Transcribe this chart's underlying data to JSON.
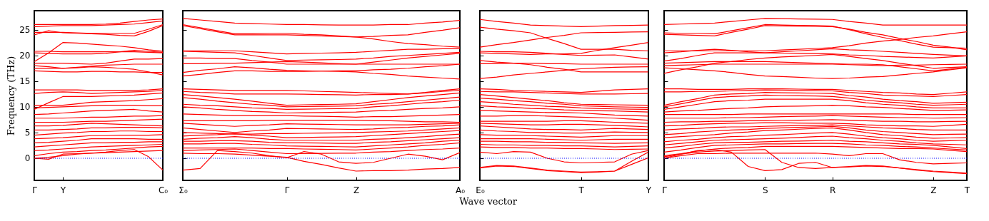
{
  "chart_data": [
    {
      "type": "line",
      "ylabel": "Frequency (THz)",
      "color": "#ff0000",
      "ylim": [
        -4.3,
        28.7
      ],
      "yticks": [
        0,
        5,
        10,
        15,
        20,
        25
      ],
      "categories": [
        "Γ",
        null,
        "Y",
        null,
        null,
        null,
        null,
        null,
        null,
        "C₀"
      ],
      "ref_lines": [
        {
          "axis": "y",
          "value": 0,
          "color": "#0000ff",
          "line_style": "dotted"
        }
      ],
      "series": [
        {
          "values": [
            26,
            26,
            26,
            26,
            26,
            26.1,
            26.3,
            26.6,
            26.9,
            27.1
          ]
        },
        {
          "values": [
            25.6,
            25.7,
            25.8,
            25.8,
            25.8,
            25.9,
            26.0,
            26.1,
            26.4,
            26.7
          ]
        },
        {
          "values": [
            24.5,
            24.5,
            24.5,
            24.4,
            24.3,
            24.3,
            24.3,
            24.3,
            25.1,
            26.0
          ]
        },
        {
          "values": [
            24.0,
            24.8,
            24.4,
            24.3,
            24.2,
            24.1,
            23.9,
            23.8,
            24.7,
            25.8
          ]
        },
        {
          "values": [
            18.8,
            20.5,
            22.5,
            22.4,
            22.2,
            22.0,
            21.8,
            21.5,
            21.1,
            20.8
          ]
        },
        {
          "values": [
            20.8,
            20.8,
            20.7,
            20.7,
            20.7,
            20.7,
            20.7,
            20.7,
            20.6,
            20.5
          ]
        },
        {
          "values": [
            20.5,
            20.4,
            20.3,
            20.3,
            20.3,
            20.4,
            20.7,
            21.0,
            20.8,
            20.6
          ]
        },
        {
          "values": [
            18.5,
            18.5,
            18.5,
            18.4,
            18.3,
            18.5,
            18.9,
            19.3,
            19.3,
            19.4
          ]
        },
        {
          "values": [
            18.0,
            17.8,
            17.5,
            17.7,
            17.9,
            18.1,
            18.2,
            18.3,
            18.3,
            18.3
          ]
        },
        {
          "values": [
            17.5,
            17.5,
            17.5,
            17.6,
            17.8,
            17.7,
            17.5,
            17.3,
            16.8,
            16.2
          ]
        },
        {
          "values": [
            17.0,
            16.9,
            16.8,
            16.8,
            16.9,
            16.9,
            16.8,
            16.8,
            16.7,
            16.7
          ]
        },
        {
          "values": [
            13.3,
            13.3,
            13.3,
            13.3,
            13.2,
            13.2,
            13.2,
            13.2,
            13.3,
            13.5
          ]
        },
        {
          "values": [
            12.6,
            12.8,
            12.9,
            12.8,
            12.6,
            12.7,
            12.8,
            12.9,
            13.0,
            13.2
          ]
        },
        {
          "values": [
            9.5,
            10.8,
            12.0,
            12.0,
            12.0,
            12.1,
            12.2,
            12.3,
            12.5,
            12.7
          ]
        },
        {
          "values": [
            10.3,
            10.3,
            10.3,
            10.6,
            10.9,
            11.0,
            11.1,
            11.2,
            11.4,
            11.6
          ]
        },
        {
          "values": [
            9.8,
            9.9,
            10.0,
            10.1,
            10.2,
            10.3,
            10.3,
            10.3,
            10.2,
            10.2
          ]
        },
        {
          "values": [
            8.5,
            8.6,
            8.8,
            9.0,
            9.2,
            9.3,
            9.4,
            9.5,
            9.2,
            9.0
          ]
        },
        {
          "values": [
            7.8,
            7.8,
            7.8,
            7.9,
            8.0,
            8.0,
            8.1,
            8.2,
            8.2,
            8.3
          ]
        },
        {
          "values": [
            7.0,
            7.0,
            7.0,
            7.1,
            7.2,
            7.2,
            7.3,
            7.4,
            7.5,
            7.6
          ]
        },
        {
          "values": [
            6.3,
            6.3,
            6.4,
            6.6,
            6.8,
            6.7,
            6.6,
            6.5,
            6.4,
            6.3
          ]
        },
        {
          "values": [
            5.5,
            5.5,
            5.6,
            5.7,
            5.9,
            5.9,
            6.0,
            6.0,
            6.0,
            5.9
          ]
        },
        {
          "values": [
            4.5,
            4.7,
            4.9,
            5.0,
            5.2,
            5.2,
            5.3,
            5.3,
            5.2,
            5.2
          ]
        },
        {
          "values": [
            3.8,
            3.9,
            4.0,
            4.2,
            4.4,
            4.4,
            4.5,
            4.5,
            4.5,
            4.6
          ]
        },
        {
          "values": [
            3.0,
            3.1,
            3.3,
            3.5,
            3.8,
            3.8,
            3.8,
            3.8,
            3.7,
            3.7
          ]
        },
        {
          "values": [
            2.2,
            2.4,
            2.6,
            2.8,
            3.0,
            3.0,
            3.1,
            3.1,
            3.2,
            3.2
          ]
        },
        {
          "values": [
            1.5,
            1.6,
            1.8,
            2.0,
            2.2,
            2.3,
            2.4,
            2.5,
            2.6,
            2.7
          ]
        },
        {
          "values": [
            0.5,
            0.9,
            1.2,
            1.3,
            1.5,
            1.6,
            1.8,
            2.0,
            2.2,
            2.3
          ]
        },
        {
          "values": [
            0,
            -0.2,
            0.8,
            0.9,
            1.0,
            1.1,
            1.2,
            1.3,
            1.4,
            1.5
          ]
        },
        {
          "values": [
            0,
            0.2,
            0.5,
            0.8,
            1.0,
            1.2,
            1.5,
            1.7,
            0.3,
            -2.3
          ]
        }
      ]
    },
    {
      "type": "line",
      "color": "#ff0000",
      "ylim": [
        -4.3,
        28.7
      ],
      "yticks": [
        0,
        5,
        10,
        15,
        20,
        25
      ],
      "tick_labels": "x",
      "categories": [
        "Σ₀",
        null,
        null,
        null,
        null,
        null,
        "Γ",
        null,
        null,
        null,
        "Z",
        null,
        null,
        null,
        null,
        null,
        "A₀"
      ],
      "ref_lines": [
        {
          "axis": "y",
          "value": 0,
          "color": "#0000ff",
          "line_style": "dotted"
        }
      ],
      "xlabel": "Wave vector",
      "series": [
        {
          "values": [
            27.2,
            26.9,
            26.6,
            26.3,
            26.2,
            26.1,
            26.0,
            26.0,
            25.95,
            25.9,
            25.9,
            25.9,
            26.0,
            26.0,
            26.3,
            26.5,
            26.8
          ]
        },
        {
          "values": [
            26.0,
            25.4,
            24.8,
            24.2,
            24.2,
            24.3,
            24.3,
            24.1,
            24.0,
            23.8,
            23.6,
            23.7,
            23.9,
            24.0,
            24.5,
            24.9,
            25.4
          ]
        },
        {
          "values": [
            25.8,
            25.2,
            24.6,
            24.0,
            24.0,
            24.0,
            24.0,
            23.9,
            23.8,
            23.7,
            23.6,
            23.2,
            22.7,
            22.3,
            22.1,
            21.8,
            21.6
          ]
        },
        {
          "values": [
            20.9,
            20.9,
            20.9,
            20.9,
            20.7,
            20.5,
            20.3,
            20.4,
            20.45,
            20.5,
            20.6,
            20.8,
            21.0,
            21.2,
            21.2,
            21.3,
            21.3
          ]
        },
        {
          "values": [
            20.8,
            20.7,
            20.6,
            20.5,
            20.0,
            19.5,
            19.0,
            19.1,
            19.15,
            19.2,
            19.3,
            19.5,
            19.8,
            20.0,
            20.2,
            20.4,
            20.6
          ]
        },
        {
          "values": [
            19.5,
            19.5,
            19.4,
            19.4,
            19.0,
            18.7,
            18.3,
            18.3,
            18.3,
            18.3,
            18.3,
            18.7,
            19.1,
            19.5,
            19.8,
            20.1,
            20.4
          ]
        },
        {
          "values": [
            18.4,
            18.4,
            18.5,
            18.5,
            18.6,
            18.7,
            18.8,
            18.7,
            18.55,
            18.4,
            18.3,
            18.3,
            18.3,
            18.3,
            18.3,
            18.3,
            18.3
          ]
        },
        {
          "values": [
            16.7,
            17.1,
            17.4,
            17.8,
            17.6,
            17.3,
            17.1,
            17.0,
            16.95,
            16.9,
            16.8,
            16.5,
            16.3,
            16.0,
            15.8,
            15.6,
            15.4
          ]
        },
        {
          "values": [
            16.0,
            16.3,
            16.7,
            17.0,
            17.0,
            16.9,
            16.9,
            16.9,
            16.95,
            17.0,
            17.0,
            17.2,
            17.3,
            17.5,
            17.8,
            18.0,
            18.3
          ]
        },
        {
          "values": [
            13.5,
            13.4,
            13.3,
            13.2,
            13.2,
            13.2,
            13.2,
            13.1,
            13.0,
            12.9,
            12.8,
            12.7,
            12.6,
            12.5,
            12.8,
            13.2,
            13.5
          ]
        },
        {
          "values": [
            13.0,
            12.8,
            12.7,
            12.5,
            12.5,
            12.5,
            12.5,
            12.45,
            12.4,
            12.35,
            12.3,
            12.4,
            12.4,
            12.5,
            12.7,
            13.0,
            13.2
          ]
        },
        {
          "values": [
            12.4,
            12.1,
            11.8,
            11.5,
            11.1,
            10.7,
            10.3,
            10.4,
            10.45,
            10.5,
            10.6,
            11.0,
            11.4,
            11.8,
            12.1,
            12.4,
            12.7
          ]
        },
        {
          "values": [
            11.8,
            11.5,
            11.1,
            10.8,
            10.5,
            10.3,
            10.0,
            10.05,
            10.1,
            10.15,
            10.2,
            10.5,
            10.7,
            11.0,
            11.3,
            11.6,
            11.9
          ]
        },
        {
          "values": [
            10.5,
            10.3,
            10.2,
            10.0,
            9.8,
            9.7,
            9.5,
            9.55,
            9.6,
            9.65,
            9.7,
            10.0,
            10.2,
            10.5,
            10.8,
            11.0,
            11.3
          ]
        },
        {
          "values": [
            10.0,
            9.8,
            9.5,
            9.3,
            9.1,
            9.0,
            8.8,
            8.85,
            8.9,
            8.95,
            9.0,
            9.2,
            9.3,
            9.5,
            9.7,
            9.8,
            10.0
          ]
        },
        {
          "values": [
            8.6,
            8.5,
            8.4,
            8.3,
            8.3,
            8.3,
            8.3,
            8.2,
            8.15,
            8.1,
            8.0,
            8.1,
            8.1,
            8.2,
            8.3,
            8.4,
            8.5
          ]
        },
        {
          "values": [
            7.3,
            7.3,
            7.3,
            7.3,
            7.3,
            7.4,
            7.4,
            7.4,
            7.4,
            7.4,
            7.4,
            7.3,
            7.3,
            7.2,
            7.1,
            7.1,
            7.0
          ]
        },
        {
          "values": [
            6.8,
            6.6,
            6.4,
            6.2,
            6.4,
            6.5,
            6.7,
            6.65,
            6.6,
            6.55,
            6.5,
            6.5,
            6.5,
            6.5,
            6.6,
            6.7,
            6.8
          ]
        },
        {
          "values": [
            5.9,
            5.6,
            5.3,
            5.0,
            5.3,
            5.5,
            5.8,
            5.75,
            5.7,
            5.65,
            5.6,
            5.7,
            5.9,
            6.0,
            6.2,
            6.3,
            6.5
          ]
        },
        {
          "values": [
            5.0,
            4.9,
            4.8,
            4.7,
            4.7,
            4.8,
            4.8,
            4.85,
            4.9,
            4.95,
            5.0,
            5.1,
            5.2,
            5.3,
            5.5,
            5.7,
            5.9
          ]
        },
        {
          "values": [
            4.3,
            4.5,
            4.6,
            4.8,
            4.5,
            4.3,
            4.0,
            4.05,
            4.1,
            4.15,
            4.2,
            4.4,
            4.6,
            4.8,
            5.0,
            5.2,
            5.4
          ]
        },
        {
          "values": [
            3.7,
            3.9,
            4.0,
            4.2,
            4.0,
            3.7,
            3.5,
            3.5,
            3.5,
            3.5,
            3.5,
            3.7,
            3.8,
            4.0,
            4.2,
            4.5,
            4.7
          ]
        },
        {
          "values": [
            3.3,
            3.3,
            3.4,
            3.4,
            3.3,
            3.1,
            3.0,
            3.0,
            2.95,
            2.9,
            2.9,
            3.1,
            3.2,
            3.4,
            3.6,
            3.8,
            4.0
          ]
        },
        {
          "values": [
            2.8,
            2.8,
            2.9,
            2.9,
            2.7,
            2.6,
            2.4,
            2.35,
            2.3,
            2.25,
            2.2,
            2.4,
            2.6,
            2.8,
            3.0,
            3.3,
            3.5
          ]
        },
        {
          "values": [
            2.0,
            2.0,
            2.0,
            2.0,
            2.0,
            1.9,
            1.9,
            1.8,
            1.75,
            1.7,
            1.6,
            1.8,
            2.0,
            2.2,
            2.5,
            2.7,
            3.0
          ]
        },
        {
          "values": [
            1.5,
            1.6,
            1.7,
            1.8,
            1.5,
            1.2,
            0.9,
            0.9,
            0.95,
            1.0,
            1.0,
            1.2,
            1.3,
            1.5,
            1.7,
            1.8,
            2.0
          ]
        },
        {
          "values": [
            1.0,
            0.9,
            0.9,
            0.8,
            0.6,
            0.4,
            0.2,
            -0.6,
            -1.2,
            -1.9,
            -2.5,
            -2.4,
            -2.4,
            -2.3,
            -2.1,
            -2.0,
            -1.8
          ]
        },
        {
          "values": [
            -2.3,
            -2.0,
            1.5,
            1.3,
            1.0,
            0.5,
            0.1,
            1.3,
            0.8,
            -0.7,
            -1.0,
            -0.8,
            0.0,
            0.8,
            0.4,
            -0.3,
            1.1
          ]
        }
      ]
    },
    {
      "type": "line",
      "color": "#ff0000",
      "ylim": [
        -4.3,
        28.7
      ],
      "yticks": [
        0,
        5,
        10,
        15,
        20,
        25
      ],
      "tick_labels": "x",
      "categories": [
        "E₀",
        null,
        null,
        null,
        null,
        null,
        "T",
        null,
        null,
        null,
        "Y"
      ],
      "ref_lines": [
        {
          "axis": "y",
          "value": 0,
          "color": "#0000ff",
          "line_style": "dotted"
        }
      ],
      "series": [
        {
          "values": [
            27.0,
            26.6,
            26.3,
            25.9,
            25.8,
            25.7,
            25.6,
            25.7,
            25.8,
            25.85,
            25.9
          ]
        },
        {
          "values": [
            25.5,
            25.1,
            24.8,
            24.4,
            23.3,
            22.3,
            21.2,
            21.2,
            21.2,
            21.0,
            20.9
          ]
        },
        {
          "values": [
            21.6,
            22.1,
            22.5,
            23.0,
            23.5,
            23.9,
            24.4,
            24.45,
            24.5,
            24.55,
            24.6
          ]
        },
        {
          "values": [
            20.8,
            20.7,
            20.7,
            20.6,
            20.4,
            20.2,
            20.0,
            20.05,
            20.1,
            19.7,
            19.3
          ]
        },
        {
          "values": [
            20.5,
            20.4,
            20.3,
            20.2,
            20.3,
            20.3,
            20.4,
            21.0,
            21.5,
            22.0,
            22.5
          ]
        },
        {
          "values": [
            18.4,
            18.4,
            18.5,
            18.5,
            18.4,
            18.4,
            18.3,
            18.3,
            18.3,
            18.3,
            18.3
          ]
        },
        {
          "values": [
            19.0,
            18.7,
            18.5,
            18.2,
            17.7,
            17.3,
            16.8,
            16.8,
            16.8,
            16.8,
            16.8
          ]
        },
        {
          "values": [
            15.5,
            15.8,
            16.2,
            16.5,
            16.8,
            17.1,
            17.4,
            17.55,
            17.7,
            17.75,
            17.8
          ]
        },
        {
          "values": [
            13.5,
            13.4,
            13.2,
            13.1,
            13.0,
            12.9,
            12.8,
            13.05,
            13.3,
            13.4,
            13.5
          ]
        },
        {
          "values": [
            13.0,
            12.9,
            12.9,
            12.8,
            12.7,
            12.6,
            12.5,
            12.5,
            12.5,
            12.55,
            12.6
          ]
        },
        {
          "values": [
            12.4,
            12.1,
            11.8,
            11.5,
            11.2,
            10.8,
            10.5,
            10.45,
            10.4,
            10.35,
            10.3
          ]
        },
        {
          "values": [
            11.7,
            11.5,
            11.2,
            11.0,
            10.7,
            10.5,
            10.2,
            10.1,
            10.0,
            9.95,
            9.9
          ]
        },
        {
          "values": [
            11.0,
            10.8,
            10.5,
            10.3,
            10.1,
            10.0,
            9.8,
            9.7,
            9.6,
            9.55,
            9.5
          ]
        },
        {
          "values": [
            10.2,
            10.0,
            9.9,
            9.7,
            9.6,
            9.4,
            9.3,
            9.25,
            9.2,
            9.1,
            9.0
          ]
        },
        {
          "values": [
            9.3,
            9.2,
            9.1,
            9.0,
            8.9,
            8.9,
            8.8,
            8.6,
            8.4,
            8.3,
            8.2
          ]
        },
        {
          "values": [
            8.2,
            8.2,
            8.3,
            8.3,
            8.2,
            8.1,
            8.0,
            7.9,
            7.8,
            7.6,
            7.4
          ]
        },
        {
          "values": [
            7.2,
            7.2,
            7.2,
            7.2,
            7.2,
            7.3,
            7.3,
            7.15,
            7.0,
            6.9,
            6.8
          ]
        },
        {
          "values": [
            6.8,
            6.7,
            6.6,
            6.5,
            6.5,
            6.6,
            6.6,
            6.5,
            6.4,
            6.25,
            6.1
          ]
        },
        {
          "values": [
            6.3,
            6.1,
            5.9,
            5.7,
            5.6,
            5.6,
            5.5,
            5.65,
            5.8,
            5.7,
            5.6
          ]
        },
        {
          "values": [
            5.5,
            5.3,
            5.2,
            5.0,
            5.0,
            4.9,
            4.9,
            5.0,
            5.1,
            5.05,
            5.0
          ]
        },
        {
          "values": [
            4.6,
            4.5,
            4.5,
            4.4,
            4.3,
            4.2,
            4.1,
            4.25,
            4.4,
            4.4,
            4.4
          ]
        },
        {
          "values": [
            3.8,
            3.8,
            3.8,
            3.8,
            3.7,
            3.6,
            3.5,
            3.6,
            3.7,
            3.7,
            3.7
          ]
        },
        {
          "values": [
            3.3,
            3.3,
            3.2,
            3.2,
            3.1,
            3.1,
            3.0,
            2.95,
            2.9,
            2.95,
            3.0
          ]
        },
        {
          "values": [
            2.7,
            2.6,
            2.6,
            2.5,
            2.5,
            2.4,
            2.4,
            2.3,
            2.2,
            2.3,
            2.4
          ]
        },
        {
          "values": [
            2.2,
            2.1,
            2.1,
            2.0,
            2.0,
            1.9,
            1.9,
            1.8,
            1.7,
            1.75,
            1.8
          ]
        },
        {
          "values": [
            1.2,
            0.9,
            1.3,
            1.2,
            0.0,
            -0.7,
            -0.9,
            -0.8,
            -0.7,
            0.8,
            1.5
          ]
        },
        {
          "values": [
            -1.8,
            -1.4,
            -1.5,
            -1.9,
            -2.3,
            -2.5,
            -2.7,
            -2.6,
            -2.5,
            -1.2,
            0.1
          ]
        },
        {
          "values": [
            -1.9,
            -1.5,
            -1.6,
            -2.0,
            -2.4,
            -2.6,
            -2.8,
            -2.7,
            -2.5,
            -0.6,
            1.2
          ]
        }
      ]
    },
    {
      "type": "line",
      "color": "#ff0000",
      "ylim": [
        -4.3,
        28.7
      ],
      "yticks": [
        0,
        5,
        10,
        15,
        20,
        25
      ],
      "tick_labels": "x",
      "categories": [
        "Γ",
        null,
        null,
        null,
        null,
        null,
        "S",
        null,
        null,
        null,
        "R",
        null,
        null,
        null,
        null,
        null,
        "Z",
        null,
        "T"
      ],
      "ref_lines": [
        {
          "axis": "y",
          "value": 0,
          "color": "#0000ff",
          "line_style": "dotted"
        }
      ],
      "series": [
        {
          "values": [
            26.0,
            26.1,
            26.2,
            26.3,
            26.6,
            26.9,
            27.2,
            27.15,
            27.1,
            27.05,
            27.0,
            26.6,
            26.3,
            25.9,
            25.9,
            25.9,
            25.9,
            25.9,
            25.9
          ]
        },
        {
          "values": [
            24.4,
            24.3,
            24.3,
            24.2,
            24.8,
            25.4,
            26.0,
            25.9,
            25.85,
            25.8,
            25.7,
            25.0,
            24.2,
            23.5,
            22.9,
            22.2,
            21.6,
            21.5,
            21.4
          ]
        },
        {
          "values": [
            24.1,
            24.0,
            23.9,
            23.8,
            24.5,
            25.1,
            25.8,
            25.75,
            25.7,
            25.65,
            25.6,
            25.1,
            24.5,
            24.0,
            23.3,
            22.7,
            22.0,
            21.6,
            21.1
          ]
        },
        {
          "values": [
            20.9,
            20.9,
            20.9,
            20.9,
            20.9,
            20.9,
            20.9,
            21.05,
            21.2,
            21.35,
            21.5,
            21.9,
            22.4,
            22.8,
            23.1,
            23.5,
            23.8,
            24.2,
            24.6
          ]
        },
        {
          "values": [
            20.5,
            20.7,
            21.0,
            21.2,
            21.0,
            20.7,
            20.5,
            20.7,
            20.9,
            21.1,
            21.3,
            21.1,
            21.0,
            20.8,
            20.6,
            20.4,
            20.2,
            20.05,
            19.9
          ]
        },
        {
          "values": [
            18.9,
            19.4,
            20.0,
            20.5,
            20.5,
            20.5,
            20.5,
            20.45,
            20.4,
            20.35,
            20.3,
            20.1,
            20.0,
            19.8,
            19.7,
            19.6,
            19.5,
            19.7,
            19.9
          ]
        },
        {
          "values": [
            18.5,
            18.6,
            18.7,
            18.8,
            18.8,
            18.8,
            18.8,
            18.7,
            18.6,
            18.5,
            18.4,
            18.3,
            18.3,
            18.2,
            17.8,
            17.4,
            17.0,
            17.35,
            17.7
          ]
        },
        {
          "values": [
            18.0,
            18.1,
            18.2,
            18.3,
            18.3,
            18.3,
            18.3,
            18.3,
            18.3,
            18.3,
            18.3,
            18.2,
            18.1,
            18.0,
            18.1,
            18.1,
            18.2,
            18.25,
            18.3
          ]
        },
        {
          "values": [
            17.6,
            17.4,
            17.2,
            17.0,
            16.7,
            16.3,
            16.0,
            15.9,
            15.75,
            15.6,
            15.5,
            15.6,
            15.8,
            15.9,
            16.2,
            16.5,
            16.8,
            17.2,
            17.6
          ]
        },
        {
          "values": [
            16.5,
            17.2,
            17.8,
            18.5,
            18.8,
            19.2,
            19.5,
            19.7,
            19.85,
            20.0,
            20.2,
            19.8,
            19.4,
            19.0,
            18.5,
            18.0,
            17.5,
            17.65,
            17.8
          ]
        },
        {
          "values": [
            13.5,
            13.5,
            13.4,
            13.4,
            13.4,
            13.5,
            13.5,
            13.5,
            13.45,
            13.4,
            13.4,
            13.2,
            13.0,
            12.8,
            12.7,
            12.5,
            12.4,
            12.65,
            12.9
          ]
        },
        {
          "values": [
            12.9,
            12.9,
            13.0,
            13.0,
            13.1,
            13.2,
            13.3,
            13.25,
            13.2,
            13.15,
            13.1,
            12.8,
            12.6,
            12.3,
            12.2,
            12.1,
            12.0,
            12.2,
            12.4
          ]
        },
        {
          "values": [
            10.3,
            11.0,
            11.6,
            12.3,
            12.5,
            12.6,
            12.8,
            12.75,
            12.7,
            12.65,
            12.6,
            12.2,
            11.9,
            11.5,
            11.2,
            11.0,
            10.7,
            10.8,
            10.9
          ]
        },
        {
          "values": [
            10.0,
            10.6,
            11.2,
            11.8,
            12.0,
            12.1,
            12.3,
            12.2,
            12.15,
            12.1,
            12.0,
            11.7,
            11.3,
            11.0,
            10.8,
            10.5,
            10.3,
            10.4,
            10.5
          ]
        },
        {
          "values": [
            9.5,
            10.0,
            10.5,
            11.0,
            11.2,
            11.3,
            11.5,
            11.5,
            11.5,
            11.5,
            11.5,
            11.2,
            10.8,
            10.5,
            10.3,
            10.0,
            9.8,
            9.8,
            9.8
          ]
        },
        {
          "values": [
            9.0,
            9.2,
            9.3,
            9.5,
            9.7,
            9.8,
            10.0,
            10.1,
            10.15,
            10.2,
            10.3,
            10.2,
            10.0,
            9.9,
            9.7,
            9.5,
            9.3,
            9.35,
            9.4
          ]
        },
        {
          "values": [
            8.5,
            8.5,
            8.5,
            8.5,
            8.5,
            8.6,
            8.6,
            8.6,
            8.6,
            8.6,
            8.6,
            8.6,
            8.6,
            8.6,
            8.6,
            8.5,
            8.5,
            8.5,
            8.5
          ]
        },
        {
          "values": [
            7.8,
            7.8,
            7.8,
            7.8,
            7.9,
            7.9,
            8.0,
            8.1,
            8.15,
            8.2,
            8.3,
            8.2,
            8.1,
            8.0,
            7.9,
            7.9,
            7.8,
            7.85,
            7.9
          ]
        },
        {
          "values": [
            7.0,
            7.1,
            7.1,
            7.2,
            7.2,
            7.3,
            7.3,
            7.35,
            7.4,
            7.45,
            7.5,
            7.4,
            7.3,
            7.2,
            7.2,
            7.1,
            7.1,
            7.15,
            7.2
          ]
        },
        {
          "values": [
            6.3,
            6.4,
            6.6,
            6.7,
            6.8,
            6.8,
            6.9,
            6.9,
            6.85,
            6.8,
            6.8,
            6.7,
            6.5,
            6.4,
            6.3,
            6.3,
            6.2,
            6.4,
            6.6
          ]
        },
        {
          "values": [
            5.5,
            5.7,
            5.8,
            6.0,
            6.1,
            6.1,
            6.2,
            6.3,
            6.35,
            6.4,
            6.5,
            6.3,
            6.1,
            5.9,
            5.8,
            5.6,
            5.5,
            5.5,
            5.5
          ]
        },
        {
          "values": [
            4.6,
            4.8,
            5.1,
            5.3,
            5.5,
            5.6,
            5.8,
            5.9,
            6.0,
            6.1,
            6.2,
            5.9,
            5.5,
            5.2,
            5.0,
            4.8,
            4.6,
            4.65,
            4.7
          ]
        },
        {
          "values": [
            4.0,
            4.2,
            4.4,
            4.6,
            4.9,
            5.1,
            5.4,
            5.5,
            5.65,
            5.8,
            5.9,
            5.5,
            5.0,
            4.6,
            4.4,
            4.1,
            3.9,
            3.95,
            4.0
          ]
        },
        {
          "values": [
            3.2,
            3.5,
            3.7,
            4.0,
            4.2,
            4.3,
            4.5,
            4.6,
            4.75,
            4.9,
            5.0,
            4.7,
            4.3,
            4.0,
            3.8,
            3.5,
            3.3,
            3.4,
            3.5
          ]
        },
        {
          "values": [
            2.6,
            2.9,
            3.2,
            3.5,
            3.6,
            3.7,
            3.8,
            3.9,
            4.05,
            4.2,
            4.3,
            4.0,
            3.8,
            3.5,
            3.3,
            3.0,
            2.8,
            2.7,
            2.6
          ]
        },
        {
          "values": [
            2.0,
            2.3,
            2.7,
            3.0,
            3.1,
            3.1,
            3.2,
            3.3,
            3.35,
            3.4,
            3.5,
            3.3,
            3.2,
            3.0,
            2.8,
            2.7,
            2.5,
            2.2,
            1.9
          ]
        },
        {
          "values": [
            1.2,
            1.6,
            2.1,
            2.5,
            2.6,
            2.7,
            2.8,
            2.8,
            2.85,
            2.9,
            2.9,
            2.8,
            2.6,
            2.5,
            2.3,
            2.2,
            2.0,
            1.8,
            1.6
          ]
        },
        {
          "values": [
            0.5,
            0.9,
            1.4,
            1.8,
            2.0,
            2.1,
            2.3,
            2.3,
            2.3,
            2.3,
            2.3,
            2.2,
            2.1,
            2.0,
            1.9,
            1.9,
            1.8,
            1.55,
            1.3
          ]
        },
        {
          "values": [
            0,
            0.5,
            0.9,
            0.9,
            1.0,
            1.0,
            1.0,
            1.0,
            1.0,
            1.0,
            0.8,
            0.5,
            0.9,
            0.9,
            -0.3,
            -0.8,
            -1.1,
            -1.0,
            -0.9
          ]
        },
        {
          "values": [
            0,
            0.8,
            1.5,
            1.7,
            1.2,
            -1.6,
            -2.4,
            -2.2,
            -1.0,
            -0.8,
            -1.8,
            -1.7,
            -1.5,
            -1.6,
            -1.9,
            -2.2,
            -2.5,
            -2.7,
            -2.9
          ]
        },
        {
          "values": [
            0.3,
            0.8,
            1.2,
            1.4,
            1.5,
            1.6,
            1.7,
            -0.8,
            -1.8,
            -2.0,
            -1.8,
            -1.6,
            -1.4,
            -1.5,
            -1.9,
            -2.3,
            -2.6,
            -2.8,
            -3.0
          ]
        }
      ]
    }
  ]
}
